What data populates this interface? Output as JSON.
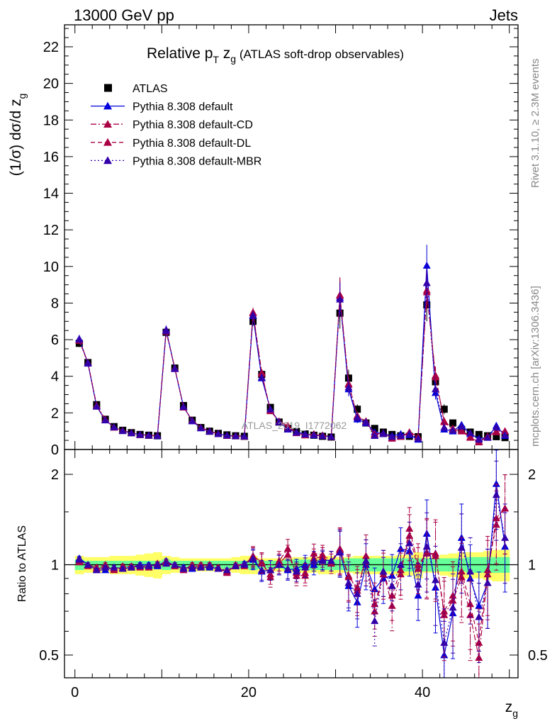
{
  "header": {
    "left": "13000 GeV pp",
    "right": "Jets"
  },
  "side_labels": {
    "rivet": "Rivet 3.1.10, ≥ 2.3M events",
    "mcplots": "mcplots.cern.ch [arXiv:1306.3436]"
  },
  "watermark": "ATLAS_2019_I1772062",
  "chart_data": [
    {
      "type": "scatter",
      "title_main": "Relative p",
      "title_main_sub": "T",
      "title_z": " z",
      "title_z_sub": "g",
      "title_suffix": " (ATLAS soft-drop observables)",
      "ylabel": "(1/σ) dσ/d z",
      "ylabel_sub": "g",
      "ylim": [
        0,
        23.2
      ],
      "xlim": [
        -1.2,
        51
      ],
      "yticks": [
        0,
        2,
        4,
        6,
        8,
        10,
        12,
        14,
        16,
        18,
        20,
        22
      ],
      "legend_position": "top-left",
      "x": [
        0.5,
        1.5,
        2.5,
        3.5,
        4.5,
        5.5,
        6.5,
        7.5,
        8.5,
        9.5,
        10.5,
        11.5,
        12.5,
        13.5,
        14.5,
        15.5,
        16.5,
        17.5,
        18.5,
        19.5,
        20.5,
        21.5,
        22.5,
        23.5,
        24.5,
        25.5,
        26.5,
        27.5,
        28.5,
        29.5,
        30.5,
        31.5,
        32.5,
        33.5,
        34.5,
        35.5,
        36.5,
        37.5,
        38.5,
        39.5,
        40.5,
        41.5,
        42.5,
        43.5,
        44.5,
        45.5,
        46.5,
        47.5,
        48.5,
        49.5
      ],
      "series": [
        {
          "name": "ATLAS",
          "color": "#000000",
          "marker": "square",
          "line": "none",
          "values": [
            5.8,
            4.75,
            2.45,
            1.65,
            1.25,
            1.05,
            0.92,
            0.82,
            0.78,
            0.75,
            6.4,
            4.45,
            2.4,
            1.6,
            1.2,
            1.0,
            0.88,
            0.8,
            0.75,
            0.72,
            7.0,
            4.1,
            2.3,
            1.5,
            1.15,
            0.98,
            0.85,
            0.78,
            0.72,
            0.68,
            7.45,
            3.9,
            2.2,
            1.45,
            1.15,
            0.95,
            0.82,
            0.75,
            0.72,
            0.7,
            7.9,
            3.7,
            2.2,
            1.45,
            1.1,
            0.95,
            0.82,
            0.75,
            0.7,
            0.65
          ]
        },
        {
          "name": "Pythia 8.308 default",
          "color": "#0000dd",
          "marker": "triangle",
          "line": "solid",
          "values": [
            6.05,
            4.7,
            2.35,
            1.6,
            1.22,
            1.02,
            0.9,
            0.82,
            0.78,
            0.74,
            6.55,
            4.4,
            2.35,
            1.55,
            1.17,
            0.98,
            0.85,
            0.76,
            0.74,
            0.73,
            7.3,
            3.9,
            2.2,
            1.5,
            1.1,
            0.95,
            0.85,
            0.78,
            0.75,
            0.7,
            8.3,
            3.3,
            1.65,
            1.45,
            0.95,
            0.85,
            0.75,
            0.85,
            0.8,
            0.55,
            10.05,
            3.1,
            1.1,
            1.0,
            1.35,
            0.85,
            0.6,
            0.65,
            1.3,
            0.75
          ]
        },
        {
          "name": "Pythia 8.308 default-CD",
          "color": "#aa0044",
          "marker": "triangle",
          "line": "dashdot",
          "values": [
            6.0,
            4.75,
            2.4,
            1.65,
            1.2,
            1.04,
            0.9,
            0.81,
            0.77,
            0.76,
            6.45,
            4.45,
            2.3,
            1.6,
            1.2,
            1.0,
            0.85,
            0.75,
            0.75,
            0.72,
            7.5,
            4.2,
            2.1,
            1.55,
            1.3,
            0.9,
            0.78,
            0.85,
            0.78,
            0.7,
            8.45,
            3.6,
            1.8,
            1.55,
            0.8,
            0.9,
            0.6,
            0.7,
            0.95,
            0.7,
            8.6,
            4.05,
            1.5,
            1.1,
            1.0,
            0.65,
            0.4,
            0.7,
            1.0,
            1.0
          ]
        },
        {
          "name": "Pythia 8.308 default-DL",
          "color": "#aa0044",
          "marker": "triangle",
          "line": "dashed",
          "values": [
            5.95,
            4.72,
            2.38,
            1.62,
            1.21,
            1.03,
            0.91,
            0.8,
            0.76,
            0.75,
            6.5,
            4.42,
            2.32,
            1.58,
            1.19,
            1.0,
            0.86,
            0.76,
            0.74,
            0.71,
            7.45,
            4.15,
            2.15,
            1.52,
            1.25,
            0.92,
            0.8,
            0.82,
            0.76,
            0.69,
            8.4,
            3.55,
            1.85,
            1.5,
            0.85,
            0.88,
            0.65,
            0.72,
            0.9,
            0.68,
            8.7,
            3.95,
            1.55,
            1.15,
            1.05,
            0.7,
            0.45,
            0.72,
            0.95,
            1.0
          ]
        },
        {
          "name": "Pythia 8.308 default-MBR",
          "color": "#3300aa",
          "marker": "triangle",
          "line": "dotted",
          "values": [
            6.02,
            4.73,
            2.36,
            1.61,
            1.22,
            1.02,
            0.9,
            0.81,
            0.77,
            0.75,
            6.48,
            4.43,
            2.33,
            1.57,
            1.18,
            0.99,
            0.85,
            0.77,
            0.74,
            0.72,
            7.35,
            3.95,
            2.2,
            1.5,
            1.12,
            0.93,
            0.83,
            0.8,
            0.74,
            0.7,
            8.2,
            3.4,
            1.75,
            1.5,
            0.75,
            0.9,
            0.7,
            0.75,
            0.85,
            0.6,
            9.1,
            3.3,
            1.2,
            1.05,
            1.25,
            0.9,
            0.55,
            0.65,
            1.2,
            0.8
          ]
        }
      ]
    },
    {
      "type": "scatter",
      "ylabel": "Ratio to ATLAS",
      "xlabel": "z",
      "xlabel_sub": "g",
      "ylim": [
        0.42,
        2.42
      ],
      "xlim": [
        -1.2,
        51
      ],
      "yticks": [
        0.5,
        1,
        2
      ],
      "xticks": [
        0,
        20,
        40
      ],
      "reference_line": 1,
      "band_colors": {
        "inner": "#66ff99",
        "outer": "#ffff66"
      },
      "band_inner": [
        0.04,
        0.03,
        0.03,
        0.03,
        0.03,
        0.03,
        0.03,
        0.03,
        0.03,
        0.03,
        0.04,
        0.03,
        0.03,
        0.03,
        0.03,
        0.03,
        0.03,
        0.03,
        0.03,
        0.03,
        0.04,
        0.03,
        0.03,
        0.03,
        0.04,
        0.04,
        0.04,
        0.04,
        0.04,
        0.04,
        0.04,
        0.05,
        0.05,
        0.05,
        0.05,
        0.05,
        0.05,
        0.05,
        0.05,
        0.05,
        0.05,
        0.05,
        0.05,
        0.05,
        0.05,
        0.06,
        0.06,
        0.06,
        0.06,
        0.06
      ],
      "band_outer": [
        0.07,
        0.06,
        0.06,
        0.06,
        0.07,
        0.07,
        0.07,
        0.08,
        0.09,
        0.1,
        0.07,
        0.06,
        0.05,
        0.05,
        0.05,
        0.05,
        0.05,
        0.05,
        0.06,
        0.07,
        0.07,
        0.05,
        0.05,
        0.05,
        0.05,
        0.06,
        0.06,
        0.06,
        0.07,
        0.07,
        0.06,
        0.06,
        0.07,
        0.07,
        0.07,
        0.07,
        0.07,
        0.08,
        0.08,
        0.1,
        0.06,
        0.06,
        0.08,
        0.09,
        0.1,
        0.1,
        0.1,
        0.11,
        0.12,
        0.12
      ],
      "series": [
        {
          "name": "Pythia 8.308 default",
          "color": "#0000dd",
          "line": "solid",
          "values": [
            1.05,
            1.0,
            0.96,
            0.96,
            0.98,
            0.97,
            0.98,
            1.0,
            1.0,
            0.99,
            1.03,
            0.99,
            0.98,
            0.97,
            0.98,
            0.98,
            0.97,
            0.95,
            0.99,
            1.01,
            1.04,
            0.95,
            0.96,
            1.0,
            0.96,
            0.97,
            1.0,
            1.0,
            1.04,
            1.03,
            1.11,
            0.85,
            0.75,
            1.0,
            0.83,
            0.9,
            0.92,
            1.13,
            1.11,
            0.79,
            1.27,
            0.84,
            0.5,
            0.69,
            1.23,
            0.9,
            0.73,
            0.87,
            1.86,
            1.15
          ]
        },
        {
          "name": "Pythia 8.308 default-CD",
          "color": "#aa0044",
          "line": "dashdot",
          "values": [
            1.03,
            1.0,
            0.98,
            1.0,
            0.96,
            0.99,
            0.98,
            0.99,
            0.99,
            1.01,
            1.01,
            1.0,
            0.96,
            1.0,
            1.0,
            1.0,
            0.97,
            0.94,
            1.0,
            1.0,
            1.07,
            1.02,
            0.91,
            1.03,
            1.13,
            0.92,
            0.92,
            1.09,
            1.08,
            1.03,
            1.13,
            0.92,
            0.82,
            1.07,
            0.7,
            0.95,
            0.73,
            0.93,
            1.32,
            1.0,
            1.09,
            1.09,
            0.68,
            0.76,
            0.91,
            0.68,
            0.49,
            0.93,
            1.43,
            1.54
          ]
        },
        {
          "name": "Pythia 8.308 default-DL",
          "color": "#aa0044",
          "line": "dashed",
          "values": [
            1.02,
            0.99,
            0.97,
            0.98,
            0.97,
            0.98,
            0.99,
            0.98,
            0.98,
            1.0,
            1.02,
            0.99,
            0.97,
            0.99,
            0.99,
            1.0,
            0.98,
            0.95,
            0.99,
            0.99,
            1.06,
            1.01,
            0.93,
            1.01,
            1.08,
            0.94,
            0.94,
            1.05,
            1.06,
            1.01,
            1.12,
            0.91,
            0.84,
            1.03,
            0.74,
            0.93,
            0.79,
            0.96,
            1.25,
            0.97,
            1.1,
            1.07,
            0.7,
            0.79,
            0.95,
            0.74,
            0.55,
            0.96,
            1.36,
            1.54
          ]
        },
        {
          "name": "Pythia 8.308 default-MBR",
          "color": "#3300aa",
          "line": "dotted",
          "values": [
            1.04,
            1.0,
            0.96,
            0.98,
            0.98,
            0.97,
            0.98,
            0.99,
            0.99,
            1.0,
            1.01,
            1.0,
            0.97,
            0.98,
            0.98,
            0.99,
            0.97,
            0.96,
            0.99,
            1.0,
            1.05,
            0.96,
            0.96,
            1.0,
            0.97,
            0.95,
            0.98,
            1.03,
            1.03,
            1.03,
            1.1,
            0.87,
            0.8,
            1.03,
            0.65,
            0.95,
            0.85,
            1.0,
            1.18,
            0.86,
            1.15,
            0.89,
            0.55,
            0.72,
            1.14,
            0.95,
            0.67,
            0.87,
            1.71,
            1.23
          ]
        }
      ]
    }
  ]
}
